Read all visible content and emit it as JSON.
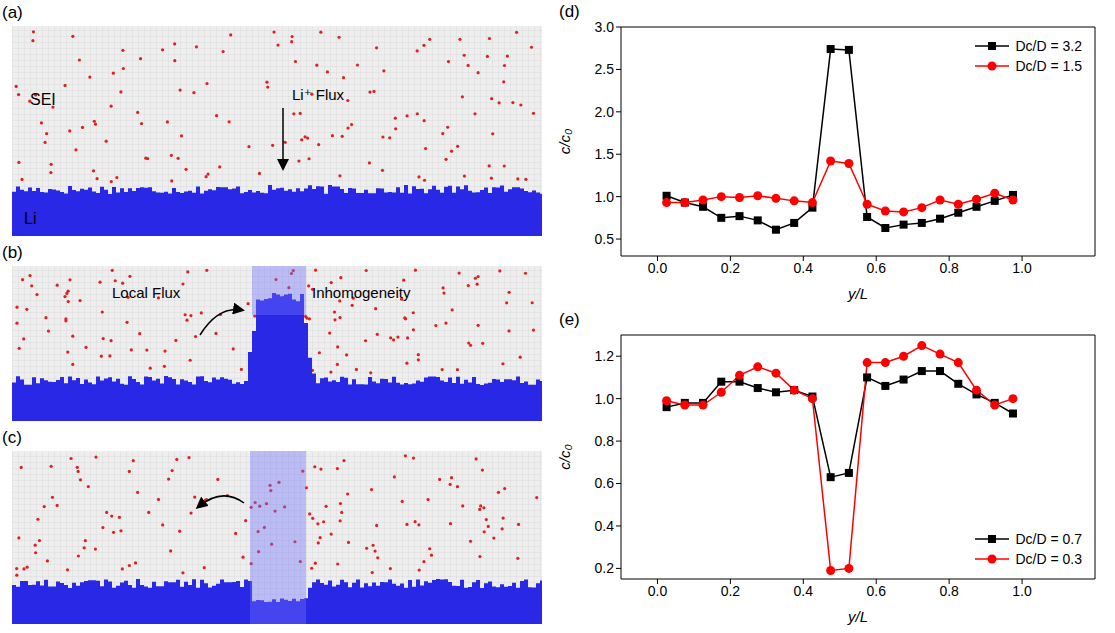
{
  "diagrams": [
    {
      "label": "(a)",
      "layer_label": "SEI",
      "flux_label": "Li⁺ Flux",
      "metal_label": "Li"
    },
    {
      "label": "(b)",
      "flux_label": "Local Flux",
      "inhomogeneity_label": "Inhomogeneity"
    },
    {
      "label": "(c)"
    }
  ],
  "chart_data": [
    {
      "label": "(d)",
      "type": "line",
      "x": [
        0.025,
        0.075,
        0.125,
        0.175,
        0.225,
        0.275,
        0.325,
        0.375,
        0.425,
        0.475,
        0.525,
        0.575,
        0.625,
        0.675,
        0.725,
        0.775,
        0.825,
        0.875,
        0.925,
        0.975
      ],
      "xlim": [
        -0.1,
        1.2
      ],
      "xticks": [
        {
          "value": 0,
          "label": "0.0"
        },
        0.2,
        0.4,
        0.6,
        0.8,
        {
          "value": 1,
          "label": "1.0"
        }
      ],
      "ylim": [
        0.3,
        3.0
      ],
      "yticks": [
        0.5,
        {
          "value": 1,
          "label": "1.0"
        },
        1.5,
        {
          "value": 2,
          "label": "2.0"
        },
        2.5,
        {
          "value": 3,
          "label": "3.0"
        }
      ],
      "x_label": "y/L",
      "y_label": "c/c₀",
      "legend": "top-right",
      "series": [
        {
          "name": "Dc/D = 3.2",
          "color": "#000000",
          "marker": "square",
          "values": [
            1.01,
            0.93,
            0.88,
            0.75,
            0.77,
            0.72,
            0.61,
            0.69,
            0.87,
            2.74,
            2.73,
            0.76,
            0.63,
            0.67,
            0.69,
            0.74,
            0.81,
            0.88,
            0.95,
            1.02
          ]
        },
        {
          "name": "Dc/D = 1.5",
          "color": "#ff0000",
          "marker": "circle",
          "values": [
            0.93,
            0.93,
            0.96,
            1.0,
            0.99,
            1.01,
            0.98,
            0.95,
            0.93,
            1.42,
            1.39,
            0.91,
            0.83,
            0.82,
            0.87,
            0.96,
            0.91,
            0.97,
            1.04,
            0.96
          ]
        }
      ]
    },
    {
      "label": "(e)",
      "type": "line",
      "x": [
        0.025,
        0.075,
        0.125,
        0.175,
        0.225,
        0.275,
        0.325,
        0.375,
        0.425,
        0.475,
        0.525,
        0.575,
        0.625,
        0.675,
        0.725,
        0.775,
        0.825,
        0.875,
        0.925,
        0.975
      ],
      "xlim": [
        -0.1,
        1.2
      ],
      "xticks": [
        {
          "value": 0,
          "label": "0.0"
        },
        0.2,
        0.4,
        0.6,
        0.8,
        {
          "value": 1,
          "label": "1.0"
        }
      ],
      "ylim": [
        0.15,
        1.3
      ],
      "yticks": [
        0.2,
        0.4,
        0.6,
        0.8,
        {
          "value": 1,
          "label": "1.0"
        },
        1.2
      ],
      "x_label": "y/L",
      "y_label": "c/c₀",
      "legend": "bottom-right",
      "series": [
        {
          "name": "Dc/D = 0.7",
          "color": "#000000",
          "marker": "square",
          "values": [
            0.96,
            0.98,
            0.98,
            1.08,
            1.08,
            1.05,
            1.03,
            1.04,
            1.01,
            0.63,
            0.65,
            1.1,
            1.06,
            1.09,
            1.13,
            1.13,
            1.07,
            1.02,
            0.98,
            0.93
          ]
        },
        {
          "name": "Dc/D = 0.3",
          "color": "#ff0000",
          "marker": "circle",
          "values": [
            0.99,
            0.97,
            0.97,
            1.03,
            1.11,
            1.15,
            1.12,
            1.04,
            1.0,
            0.19,
            0.2,
            1.17,
            1.17,
            1.2,
            1.25,
            1.21,
            1.17,
            1.04,
            0.97,
            1.0
          ]
        }
      ]
    }
  ]
}
